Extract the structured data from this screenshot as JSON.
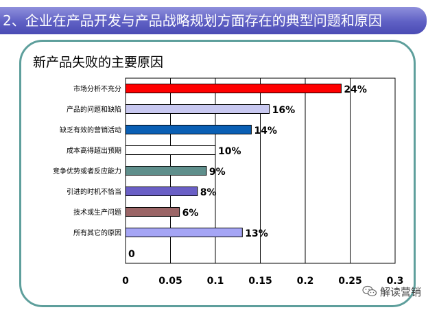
{
  "header": {
    "title": "2、企业在产品开发与产品战略规划方面存在的典型问题和原因"
  },
  "watermark": {
    "label": "解读营销",
    "icon": "wechat-icon"
  },
  "chart_data": {
    "type": "bar",
    "orientation": "horizontal",
    "title": "新产品失败的主要原因",
    "categories": [
      "市场分析不充分",
      "产品的问题和缺陷",
      "缺乏有效的营销活动",
      "成本高得超出预期",
      "竞争优势或者反应能力",
      "引进的时机不恰当",
      "技术或生产问题",
      "所有其它的原因"
    ],
    "values": [
      0.24,
      0.16,
      0.14,
      0.1,
      0.09,
      0.08,
      0.06,
      0.13
    ],
    "data_labels": [
      "24%",
      "16%",
      "14%",
      "10%",
      "9%",
      "8%",
      "6%",
      "13%"
    ],
    "bar_colors": [
      "#ff0000",
      "#c8c8f0",
      "#0a5fb4",
      "#ffffff",
      "#5f8f8c",
      "#6a5fc6",
      "#9b6566",
      "#a5a5f5"
    ],
    "xlim": [
      0,
      0.3
    ],
    "xticks": [
      "0",
      "0.05",
      "0.1",
      "0.15",
      "0.2",
      "0.25",
      "0.3"
    ],
    "extra_row_label": "0",
    "grid": "vertical",
    "legend": "none"
  }
}
